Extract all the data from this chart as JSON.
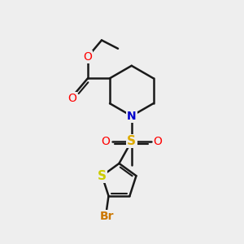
{
  "bg_color": "#eeeeee",
  "bond_color": "#1a1a1a",
  "bond_width": 1.8,
  "atom_colors": {
    "O": "#ff0000",
    "N": "#0000cc",
    "S_sulfonyl": "#ddaa00",
    "S_thio": "#cccc00",
    "Br": "#cc7700",
    "C": "#1a1a1a"
  },
  "font_size": 10,
  "fig_size": [
    3.0,
    3.0
  ],
  "dpi": 100,
  "xlim": [
    0,
    10
  ],
  "ylim": [
    0,
    10
  ]
}
